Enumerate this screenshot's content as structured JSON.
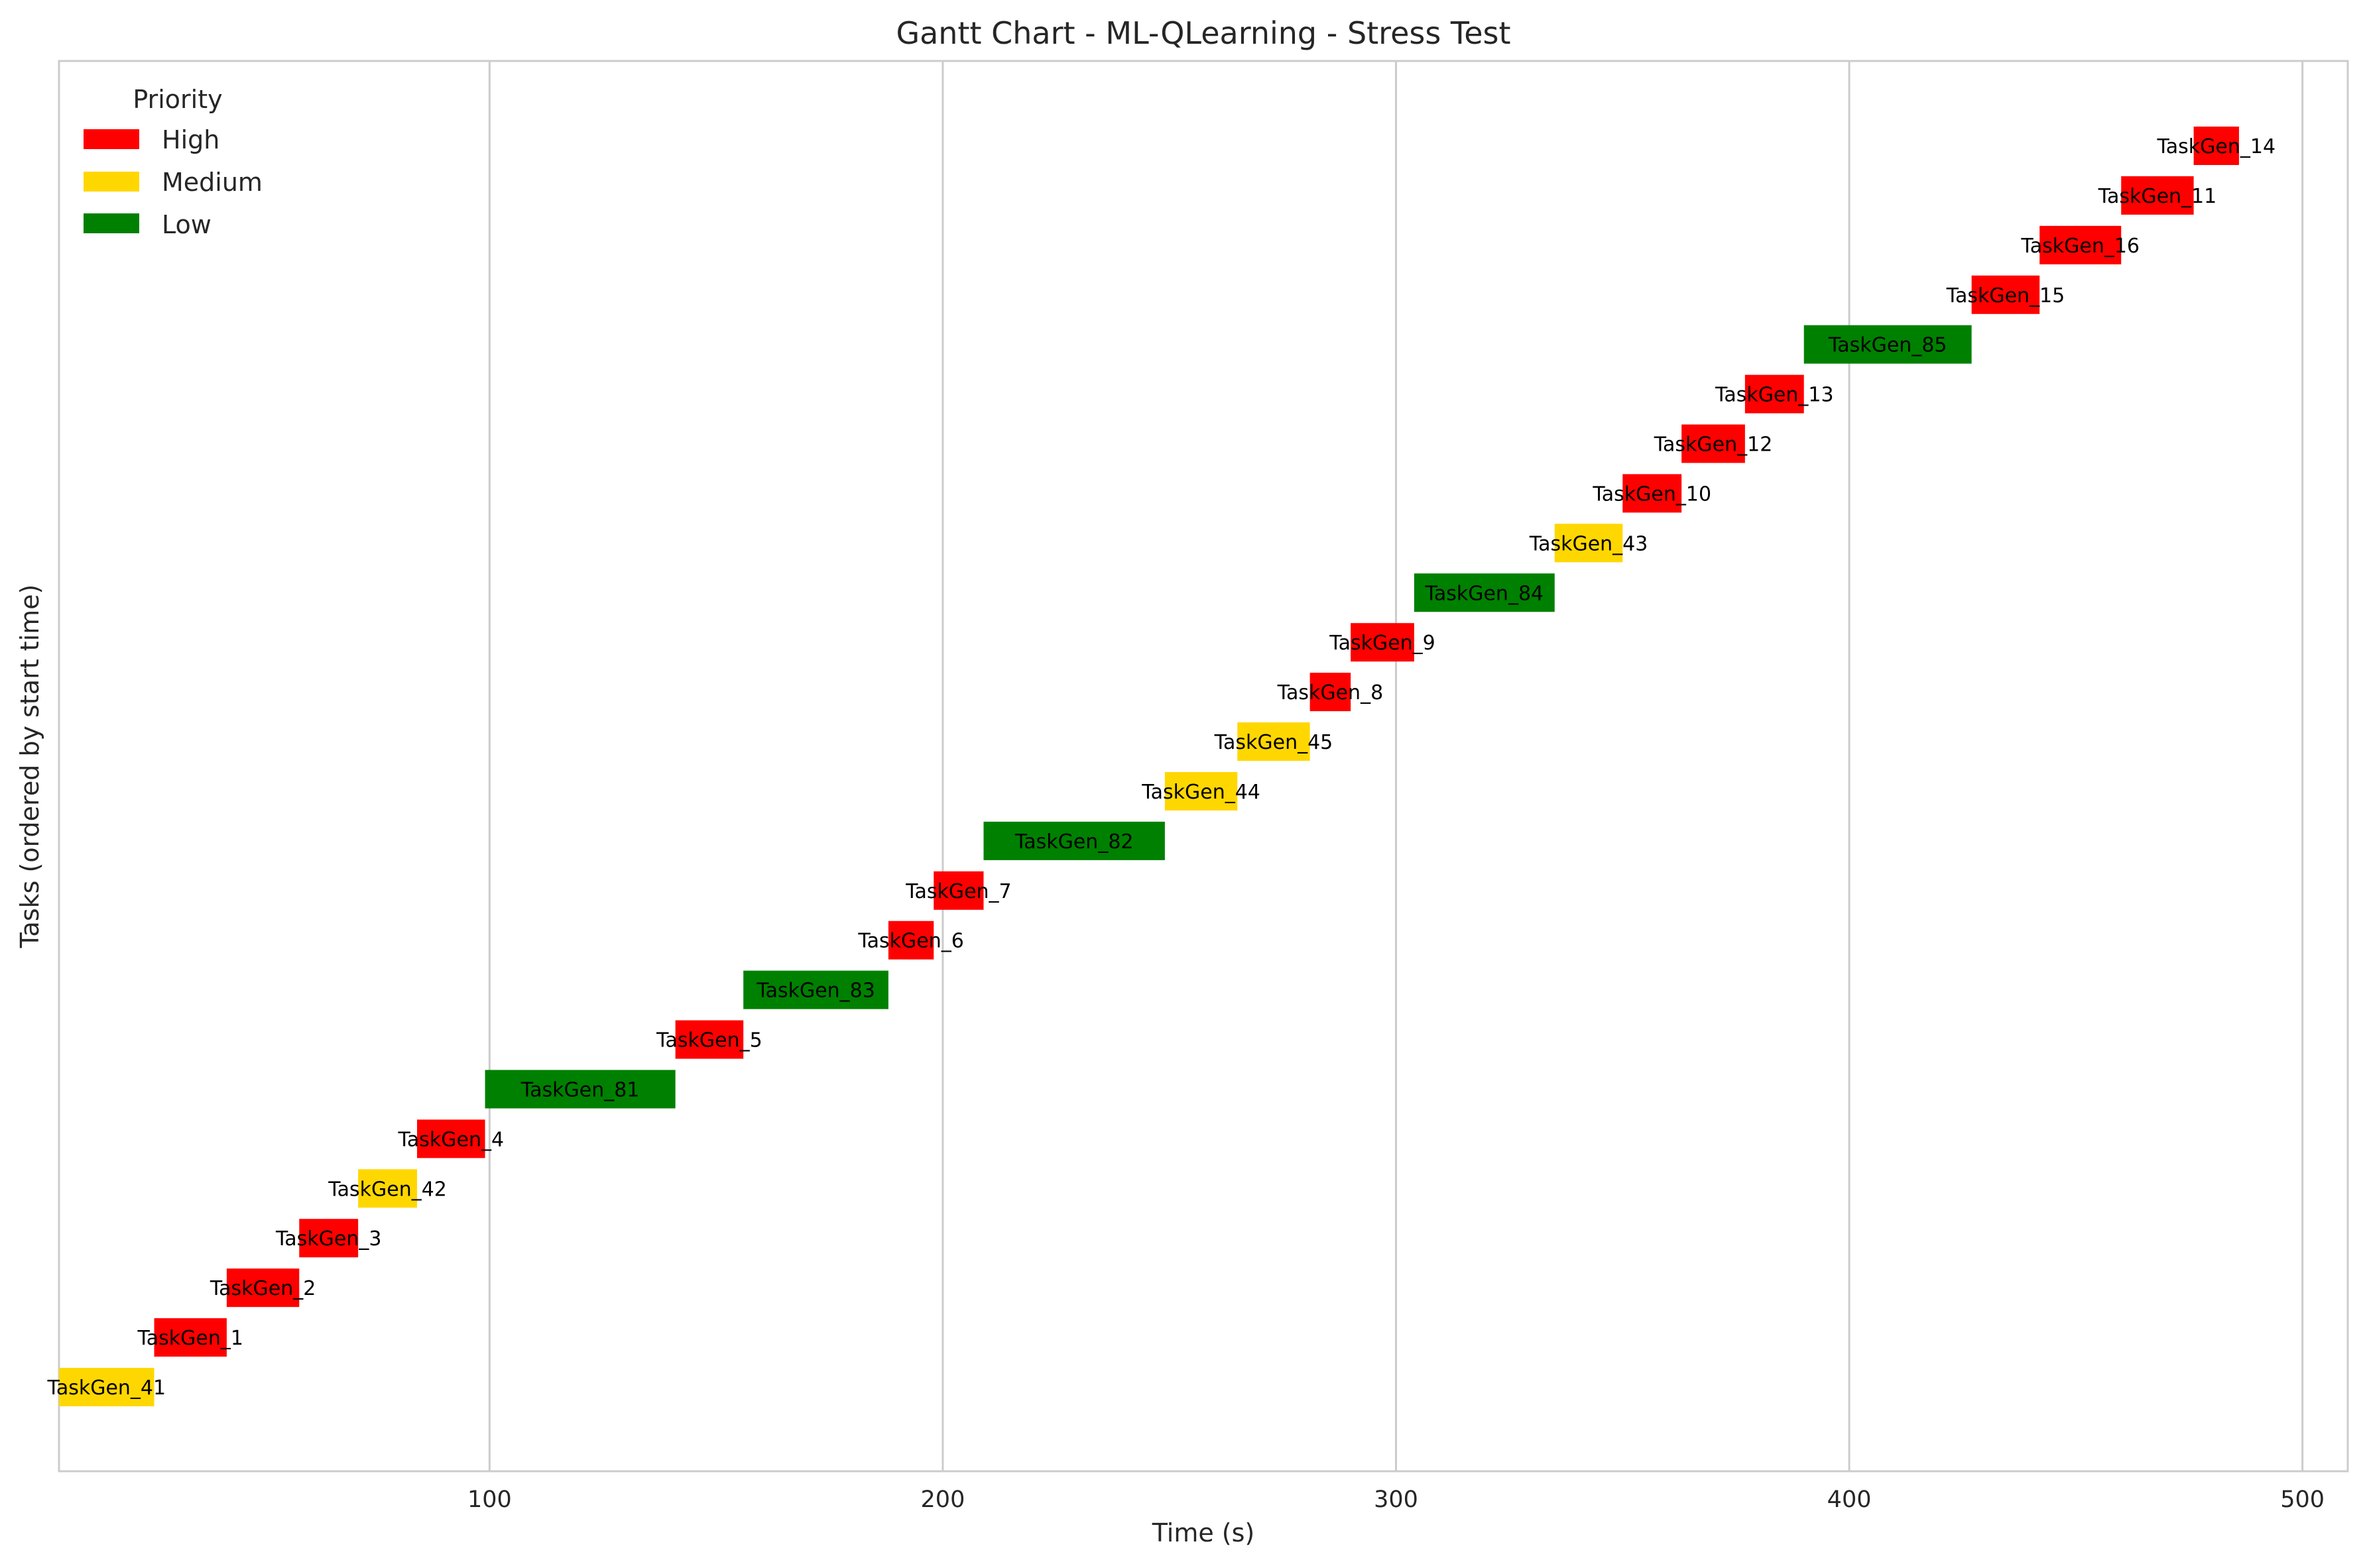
{
  "chart_data": {
    "type": "gantt",
    "title": "Gantt Chart - ML-QLearning - Stress Test",
    "xlabel": "Time (s)",
    "ylabel": "Tasks (ordered by start time)",
    "xlim": [
      5,
      510
    ],
    "xticks": [
      100,
      200,
      300,
      400,
      500
    ],
    "grid": "vertical",
    "legend": {
      "title": "Priority",
      "placement": "top-left",
      "entries": [
        {
          "label": "High",
          "color": "#ff0000"
        },
        {
          "label": "Medium",
          "color": "#ffd700"
        },
        {
          "label": "Low",
          "color": "#008000"
        }
      ]
    },
    "colors": {
      "High": "#ff0000",
      "Medium": "#ffd700",
      "Low": "#008000"
    },
    "tasks": [
      {
        "name": "TaskGen_41",
        "start": 5,
        "end": 26,
        "priority": "Medium"
      },
      {
        "name": "TaskGen_1",
        "start": 26,
        "end": 42,
        "priority": "High"
      },
      {
        "name": "TaskGen_2",
        "start": 42,
        "end": 58,
        "priority": "High"
      },
      {
        "name": "TaskGen_3",
        "start": 58,
        "end": 71,
        "priority": "High"
      },
      {
        "name": "TaskGen_42",
        "start": 71,
        "end": 84,
        "priority": "Medium"
      },
      {
        "name": "TaskGen_4",
        "start": 84,
        "end": 99,
        "priority": "High"
      },
      {
        "name": "TaskGen_81",
        "start": 99,
        "end": 141,
        "priority": "Low"
      },
      {
        "name": "TaskGen_5",
        "start": 141,
        "end": 156,
        "priority": "High"
      },
      {
        "name": "TaskGen_83",
        "start": 156,
        "end": 188,
        "priority": "Low"
      },
      {
        "name": "TaskGen_6",
        "start": 188,
        "end": 198,
        "priority": "High"
      },
      {
        "name": "TaskGen_7",
        "start": 198,
        "end": 209,
        "priority": "High"
      },
      {
        "name": "TaskGen_82",
        "start": 209,
        "end": 249,
        "priority": "Low"
      },
      {
        "name": "TaskGen_44",
        "start": 249,
        "end": 265,
        "priority": "Medium"
      },
      {
        "name": "TaskGen_45",
        "start": 265,
        "end": 281,
        "priority": "Medium"
      },
      {
        "name": "TaskGen_8",
        "start": 281,
        "end": 290,
        "priority": "High"
      },
      {
        "name": "TaskGen_9",
        "start": 290,
        "end": 304,
        "priority": "High"
      },
      {
        "name": "TaskGen_84",
        "start": 304,
        "end": 335,
        "priority": "Low"
      },
      {
        "name": "TaskGen_43",
        "start": 335,
        "end": 350,
        "priority": "Medium"
      },
      {
        "name": "TaskGen_10",
        "start": 350,
        "end": 363,
        "priority": "High"
      },
      {
        "name": "TaskGen_12",
        "start": 363,
        "end": 377,
        "priority": "High"
      },
      {
        "name": "TaskGen_13",
        "start": 377,
        "end": 390,
        "priority": "High"
      },
      {
        "name": "TaskGen_85",
        "start": 390,
        "end": 427,
        "priority": "Low"
      },
      {
        "name": "TaskGen_15",
        "start": 427,
        "end": 442,
        "priority": "High"
      },
      {
        "name": "TaskGen_16",
        "start": 442,
        "end": 460,
        "priority": "High"
      },
      {
        "name": "TaskGen_11",
        "start": 460,
        "end": 476,
        "priority": "High"
      },
      {
        "name": "TaskGen_14",
        "start": 476,
        "end": 486,
        "priority": "High"
      }
    ]
  }
}
